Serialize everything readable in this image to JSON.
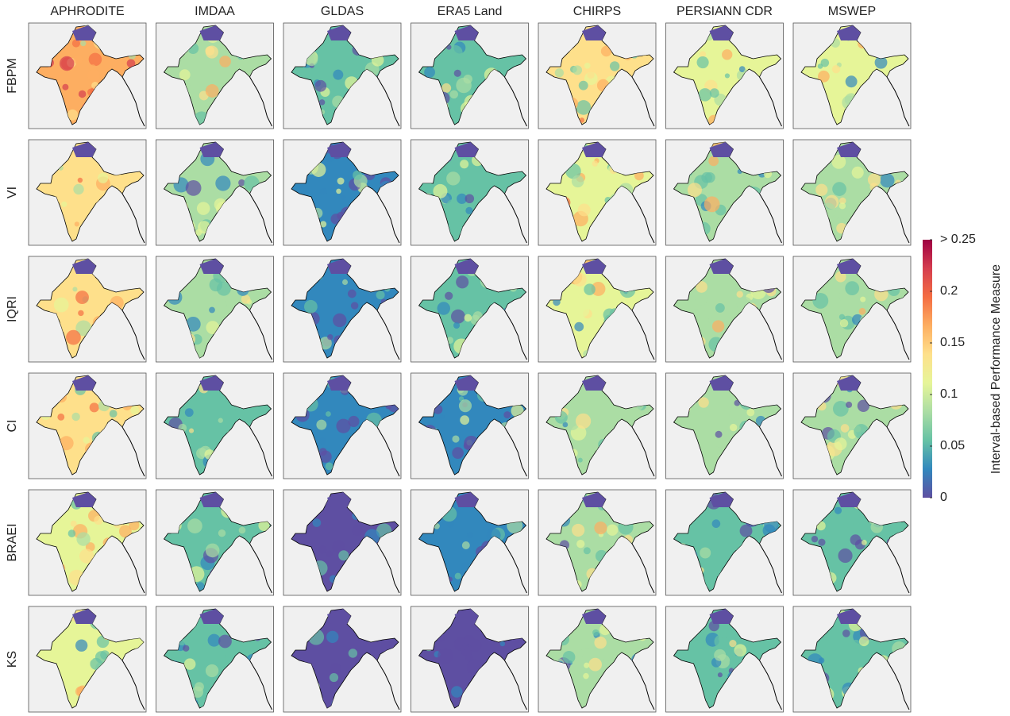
{
  "columns": [
    "APHRODITE",
    "IMDAA",
    "GLDAS",
    "ERA5 Land",
    "CHIRPS",
    "PERSIANN CDR",
    "MSWEP"
  ],
  "rows": [
    "FBPM",
    "VI",
    "IQRI",
    "CI",
    "BRAEI",
    "KS"
  ],
  "colorbar": {
    "label": "Interval-based Performance Measure",
    "lim": [
      0,
      0.25
    ],
    "ticks": [
      0,
      0.05,
      0.1,
      0.15,
      0.2,
      {
        "value": 0.25,
        "label": "> 0.25"
      }
    ],
    "colors": [
      "#5e4fa2",
      "#3288bd",
      "#66c2a5",
      "#abdda4",
      "#e6f598",
      "#fee08b",
      "#fdae61",
      "#f46d43",
      "#d53e4f",
      "#9e0142"
    ]
  }
}
